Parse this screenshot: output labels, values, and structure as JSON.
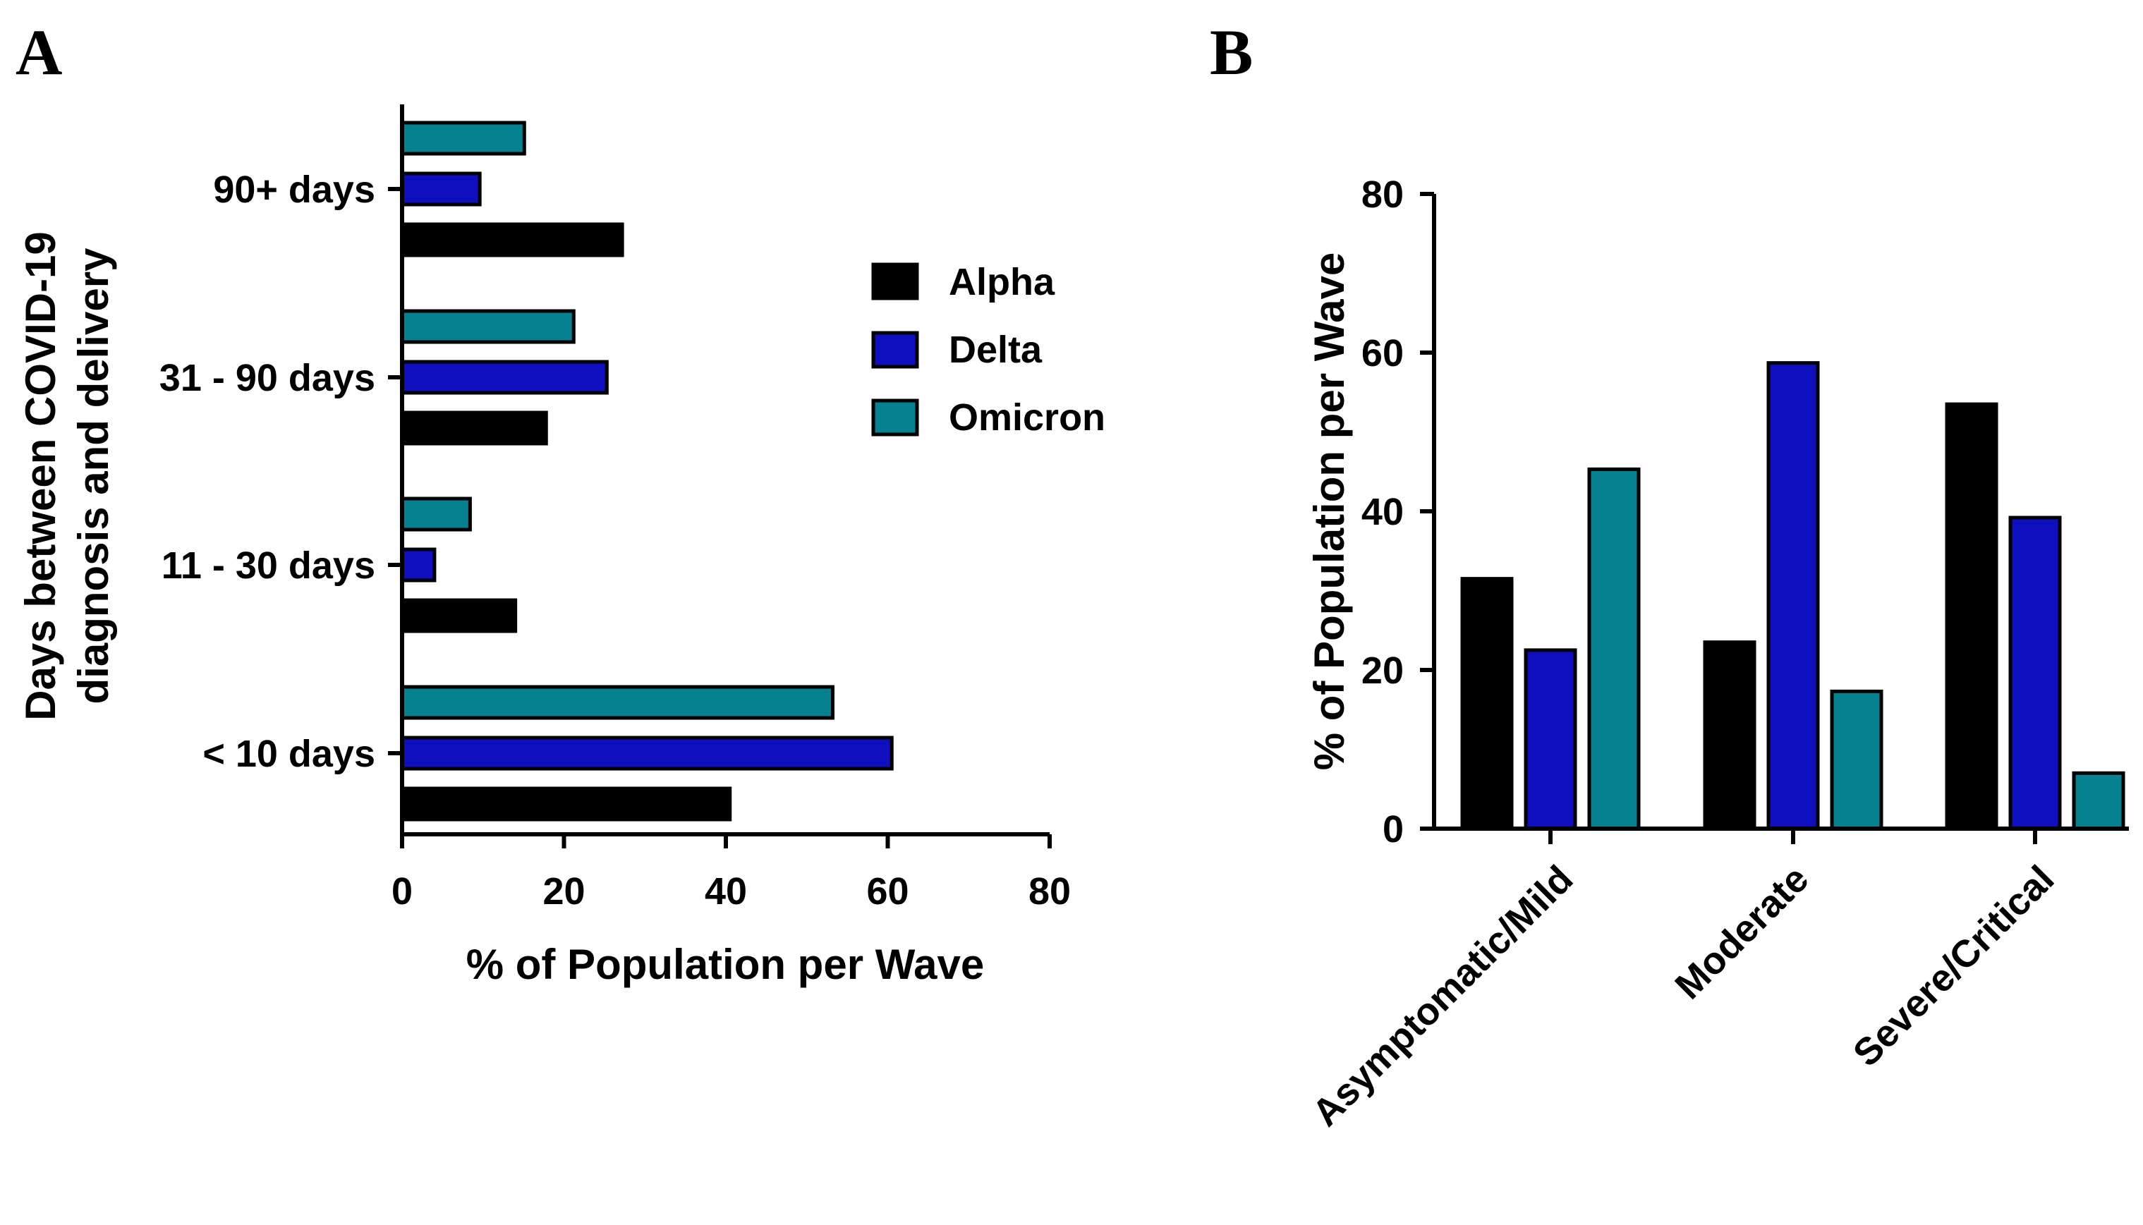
{
  "figure": {
    "panel_a_label": "A",
    "panel_b_label": "B"
  },
  "colors": {
    "Alpha": "#000000",
    "Delta": "#0f0fbf",
    "Omicron": "#05818f"
  },
  "chart_data": [
    {
      "id": "A",
      "type": "bar",
      "orientation": "horizontal",
      "title": "",
      "categories": [
        "< 10 days",
        "11 - 30 days",
        "31 - 90 days",
        "90+ days"
      ],
      "series": [
        {
          "name": "Alpha",
          "values": [
            40.5,
            14.0,
            17.8,
            27.2
          ]
        },
        {
          "name": "Delta",
          "values": [
            60.5,
            4.0,
            25.3,
            9.6
          ]
        },
        {
          "name": "Omicron",
          "values": [
            53.2,
            8.4,
            21.2,
            15.1
          ]
        }
      ],
      "xlabel": "% of Population per Wave",
      "ylabel_lines": [
        "Days between COVID-19",
        "diagnosis and delivery"
      ],
      "xlim": [
        0,
        80
      ],
      "xticks": [
        0,
        20,
        40,
        60,
        80
      ],
      "legend": {
        "placement": "right",
        "entries": [
          "Alpha",
          "Delta",
          "Omicron"
        ]
      },
      "grid": false
    },
    {
      "id": "B",
      "type": "bar",
      "orientation": "vertical",
      "title": "",
      "categories": [
        "Asymptomatic/Mild",
        "Moderate",
        "Severe/Critical"
      ],
      "series": [
        {
          "name": "Alpha",
          "values": [
            31.5,
            23.5,
            53.5
          ]
        },
        {
          "name": "Delta",
          "values": [
            22.5,
            58.7,
            39.2
          ]
        },
        {
          "name": "Omicron",
          "values": [
            45.3,
            17.3,
            7.0
          ]
        }
      ],
      "xlabel": "",
      "ylabel": "% of Population per Wave",
      "ylim": [
        0,
        80
      ],
      "yticks": [
        0,
        20,
        40,
        60,
        80
      ],
      "grid": false
    }
  ]
}
